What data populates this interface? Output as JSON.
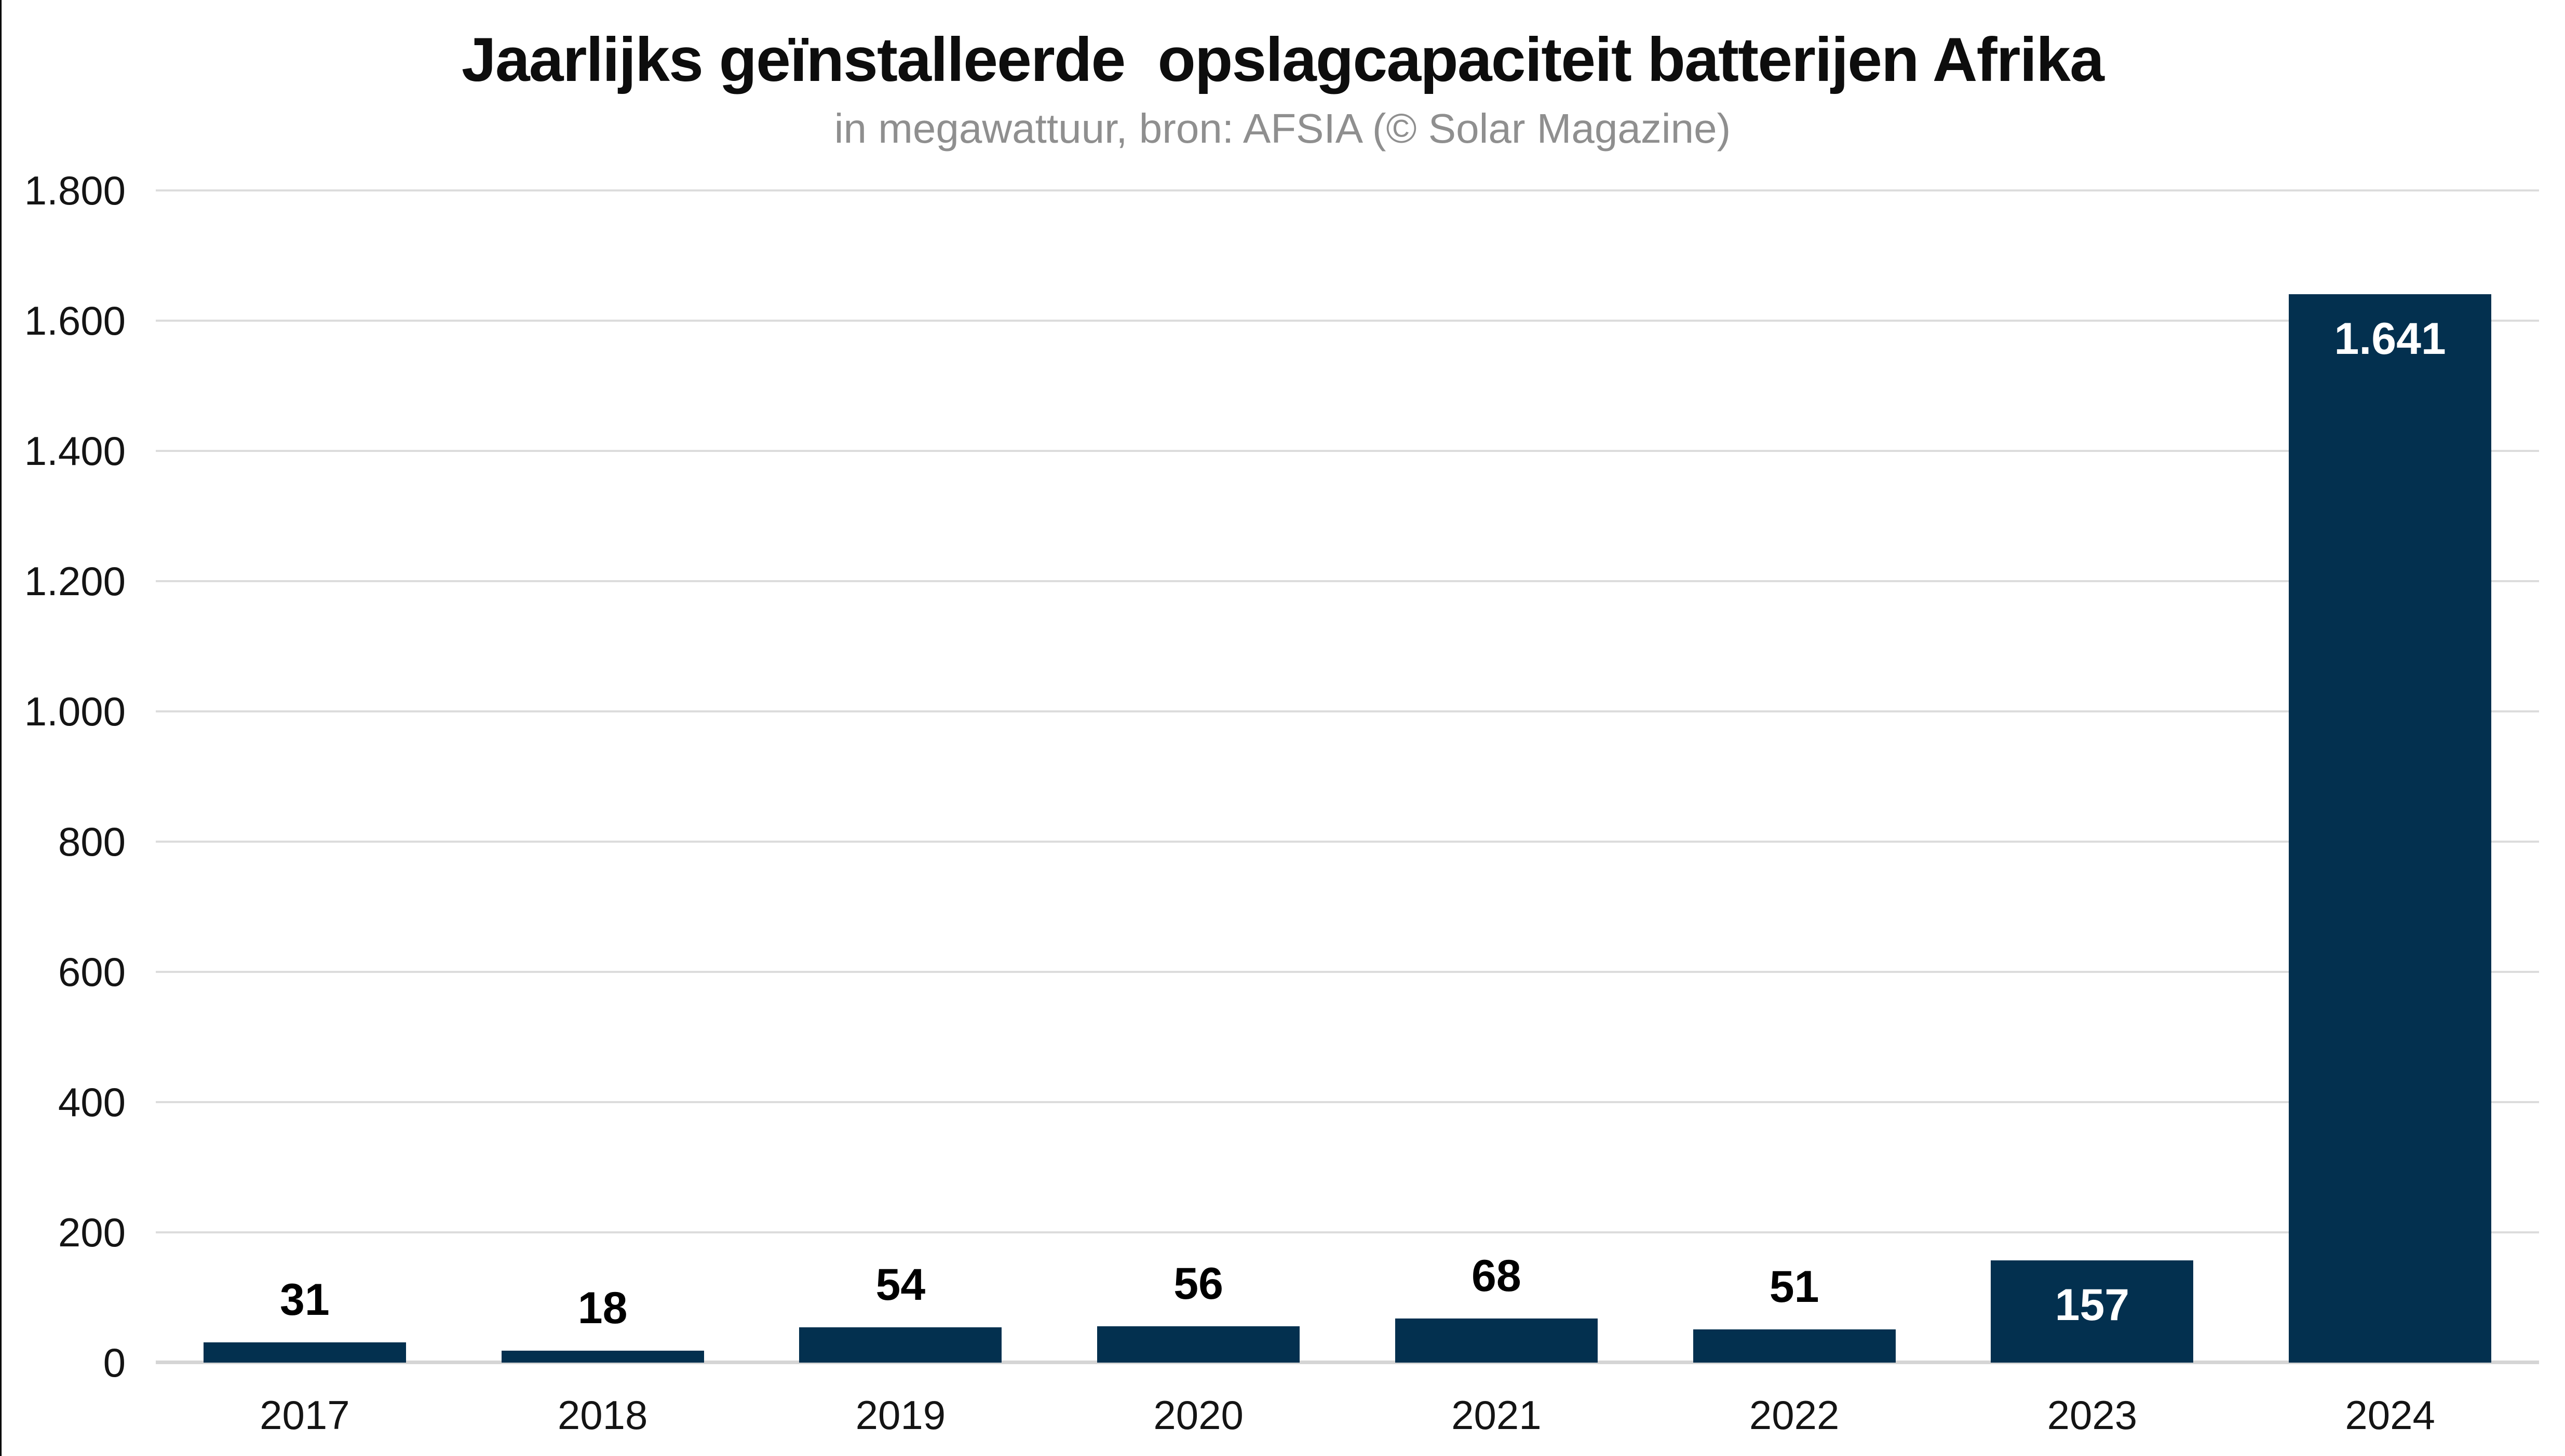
{
  "chart_data": {
    "type": "bar",
    "title": "Jaarlijks geïnstalleerde  opslagcapaciteit batterijen Afrika",
    "subtitle": "in megawattuur, bron: AFSIA (© Solar Magazine)",
    "categories": [
      "2017",
      "2018",
      "2019",
      "2020",
      "2021",
      "2022",
      "2023",
      "2024"
    ],
    "values": [
      31,
      18,
      54,
      56,
      68,
      51,
      157,
      1641
    ],
    "value_labels": [
      "31",
      "18",
      "54",
      "56",
      "68",
      "51",
      "157",
      "1.641"
    ],
    "label_placement": [
      "above",
      "above",
      "above",
      "above",
      "above",
      "above",
      "inside",
      "inside"
    ],
    "ylabel": "",
    "xlabel": "",
    "ylim": [
      0,
      1800
    ],
    "ytick_step": 200,
    "ytick_labels": [
      "0",
      "200",
      "400",
      "600",
      "800",
      "1.000",
      "1.200",
      "1.400",
      "1.600",
      "1.800"
    ],
    "grid": true,
    "legend": false,
    "colors": {
      "bar": "#03304f",
      "grid": "#dcdcdc",
      "axis_line": "#d5d5d5",
      "label_above": "#000000",
      "label_inside": "#ffffff",
      "title": "#0d0d0d",
      "subtitle": "#8f8f8f",
      "tick": "#141414",
      "frame_line": "#000000"
    }
  }
}
